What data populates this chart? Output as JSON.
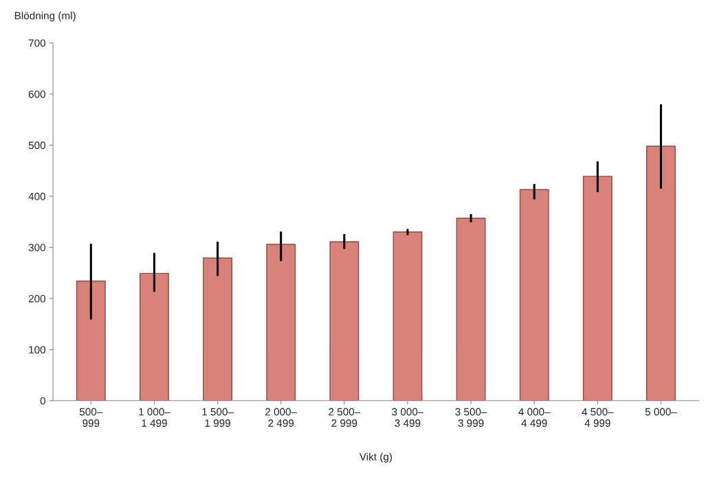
{
  "chart_data": {
    "type": "bar",
    "ylabel": "Blödning (ml)",
    "xlabel": "Vikt (g)",
    "categories": [
      "500–\n999",
      "1 000–\n1 499",
      "1 500–\n1 999",
      "2 000–\n2 499",
      "2 500–\n2 999",
      "3 000–\n3 499",
      "3 500–\n3 999",
      "4 000–\n4 499",
      "4 500–\n4 999",
      "5 000–"
    ],
    "values": [
      234,
      249,
      279,
      306,
      311,
      330,
      357,
      413,
      439,
      498
    ],
    "errors": [
      [
        159,
        307
      ],
      [
        213,
        289
      ],
      [
        244,
        311
      ],
      [
        273,
        331
      ],
      [
        297,
        326
      ],
      [
        324,
        336
      ],
      [
        349,
        365
      ],
      [
        394,
        424
      ],
      [
        408,
        468
      ],
      [
        415,
        580
      ]
    ],
    "color": "#d9827a",
    "ylim": [
      0,
      700
    ],
    "yticks": [
      0,
      100,
      200,
      300,
      400,
      500,
      600,
      700
    ],
    "grid": false,
    "legend": false
  }
}
